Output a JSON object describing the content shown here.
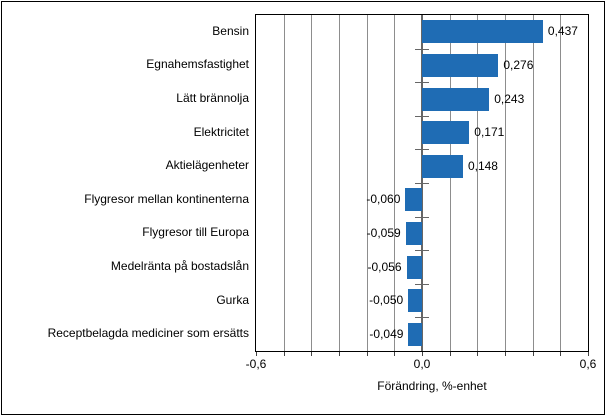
{
  "chart_data": {
    "type": "bar",
    "orientation": "horizontal",
    "categories": [
      "Bensin",
      "Egnahemsfastighet",
      "Lätt brännolja",
      "Elektricitet",
      "Aktielägenheter",
      "Flygresor mellan kontinenterna",
      "Flygresor till Europa",
      "Medelränta på bostadslån",
      "Gurka",
      "Receptbelagda mediciner som ersätts"
    ],
    "values": [
      0.437,
      0.276,
      0.243,
      0.171,
      0.148,
      -0.06,
      -0.059,
      -0.056,
      -0.05,
      -0.049
    ],
    "value_labels": [
      "0,437",
      "0,276",
      "0,243",
      "0,171",
      "0,148",
      "-0,060",
      "-0,059",
      "-0,056",
      "-0,050",
      "-0,049"
    ],
    "title": "",
    "xlabel": "Förändring, %-enhet",
    "ylabel": "",
    "xlim": [
      -0.6,
      0.6
    ],
    "x_ticks": [
      -0.6,
      0.0,
      0.6
    ],
    "x_tick_labels": [
      "-0,6",
      "0,0",
      "0,6"
    ],
    "gridline_interval": 0.1,
    "grid_on": true,
    "legend": "none",
    "bar_color": "#1F6CB4",
    "gridline_color": "#8d8d8d",
    "zero_line_color": "#666666",
    "border_color": "#000000"
  }
}
